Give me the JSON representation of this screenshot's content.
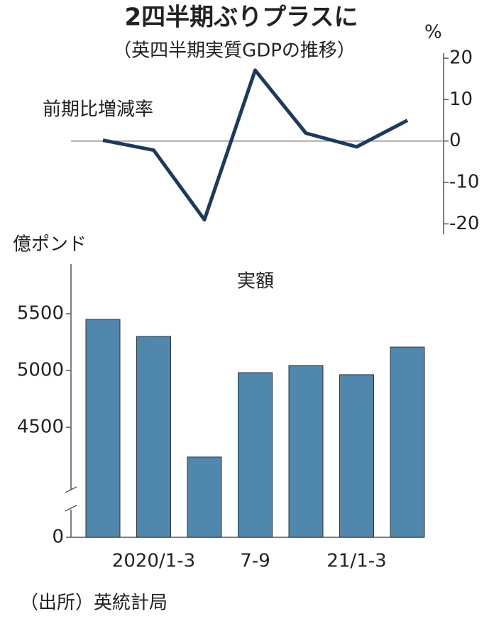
{
  "title": "2四半期ぶりプラスに",
  "subtitle": "（英四半期実質GDPの推移）",
  "source": "（出所）英統計局",
  "chart_data": [
    {
      "type": "line",
      "label": "前期比増減率",
      "unit": "%",
      "values": [
        0.2,
        -2.2,
        -19,
        17.1,
        1.9,
        -1.4,
        5.0
      ],
      "color": "#1b3a5c",
      "ylim": [
        -22.5,
        21.2
      ],
      "yticks": [
        20,
        10,
        0,
        -10,
        -20
      ],
      "zero_line": true
    },
    {
      "type": "bar",
      "label": "実額",
      "unit": "億ポンド",
      "categories": [
        null,
        "2020/1-3",
        null,
        "7-9",
        null,
        "21/1-3",
        null
      ],
      "values": [
        5450,
        5300,
        4238,
        4981,
        5044,
        4963,
        5206
      ],
      "color": "#4f87ad",
      "ylim": [
        0,
        5900
      ],
      "yticks": [
        0,
        4500,
        5000,
        5500
      ],
      "axis_break": true
    }
  ]
}
